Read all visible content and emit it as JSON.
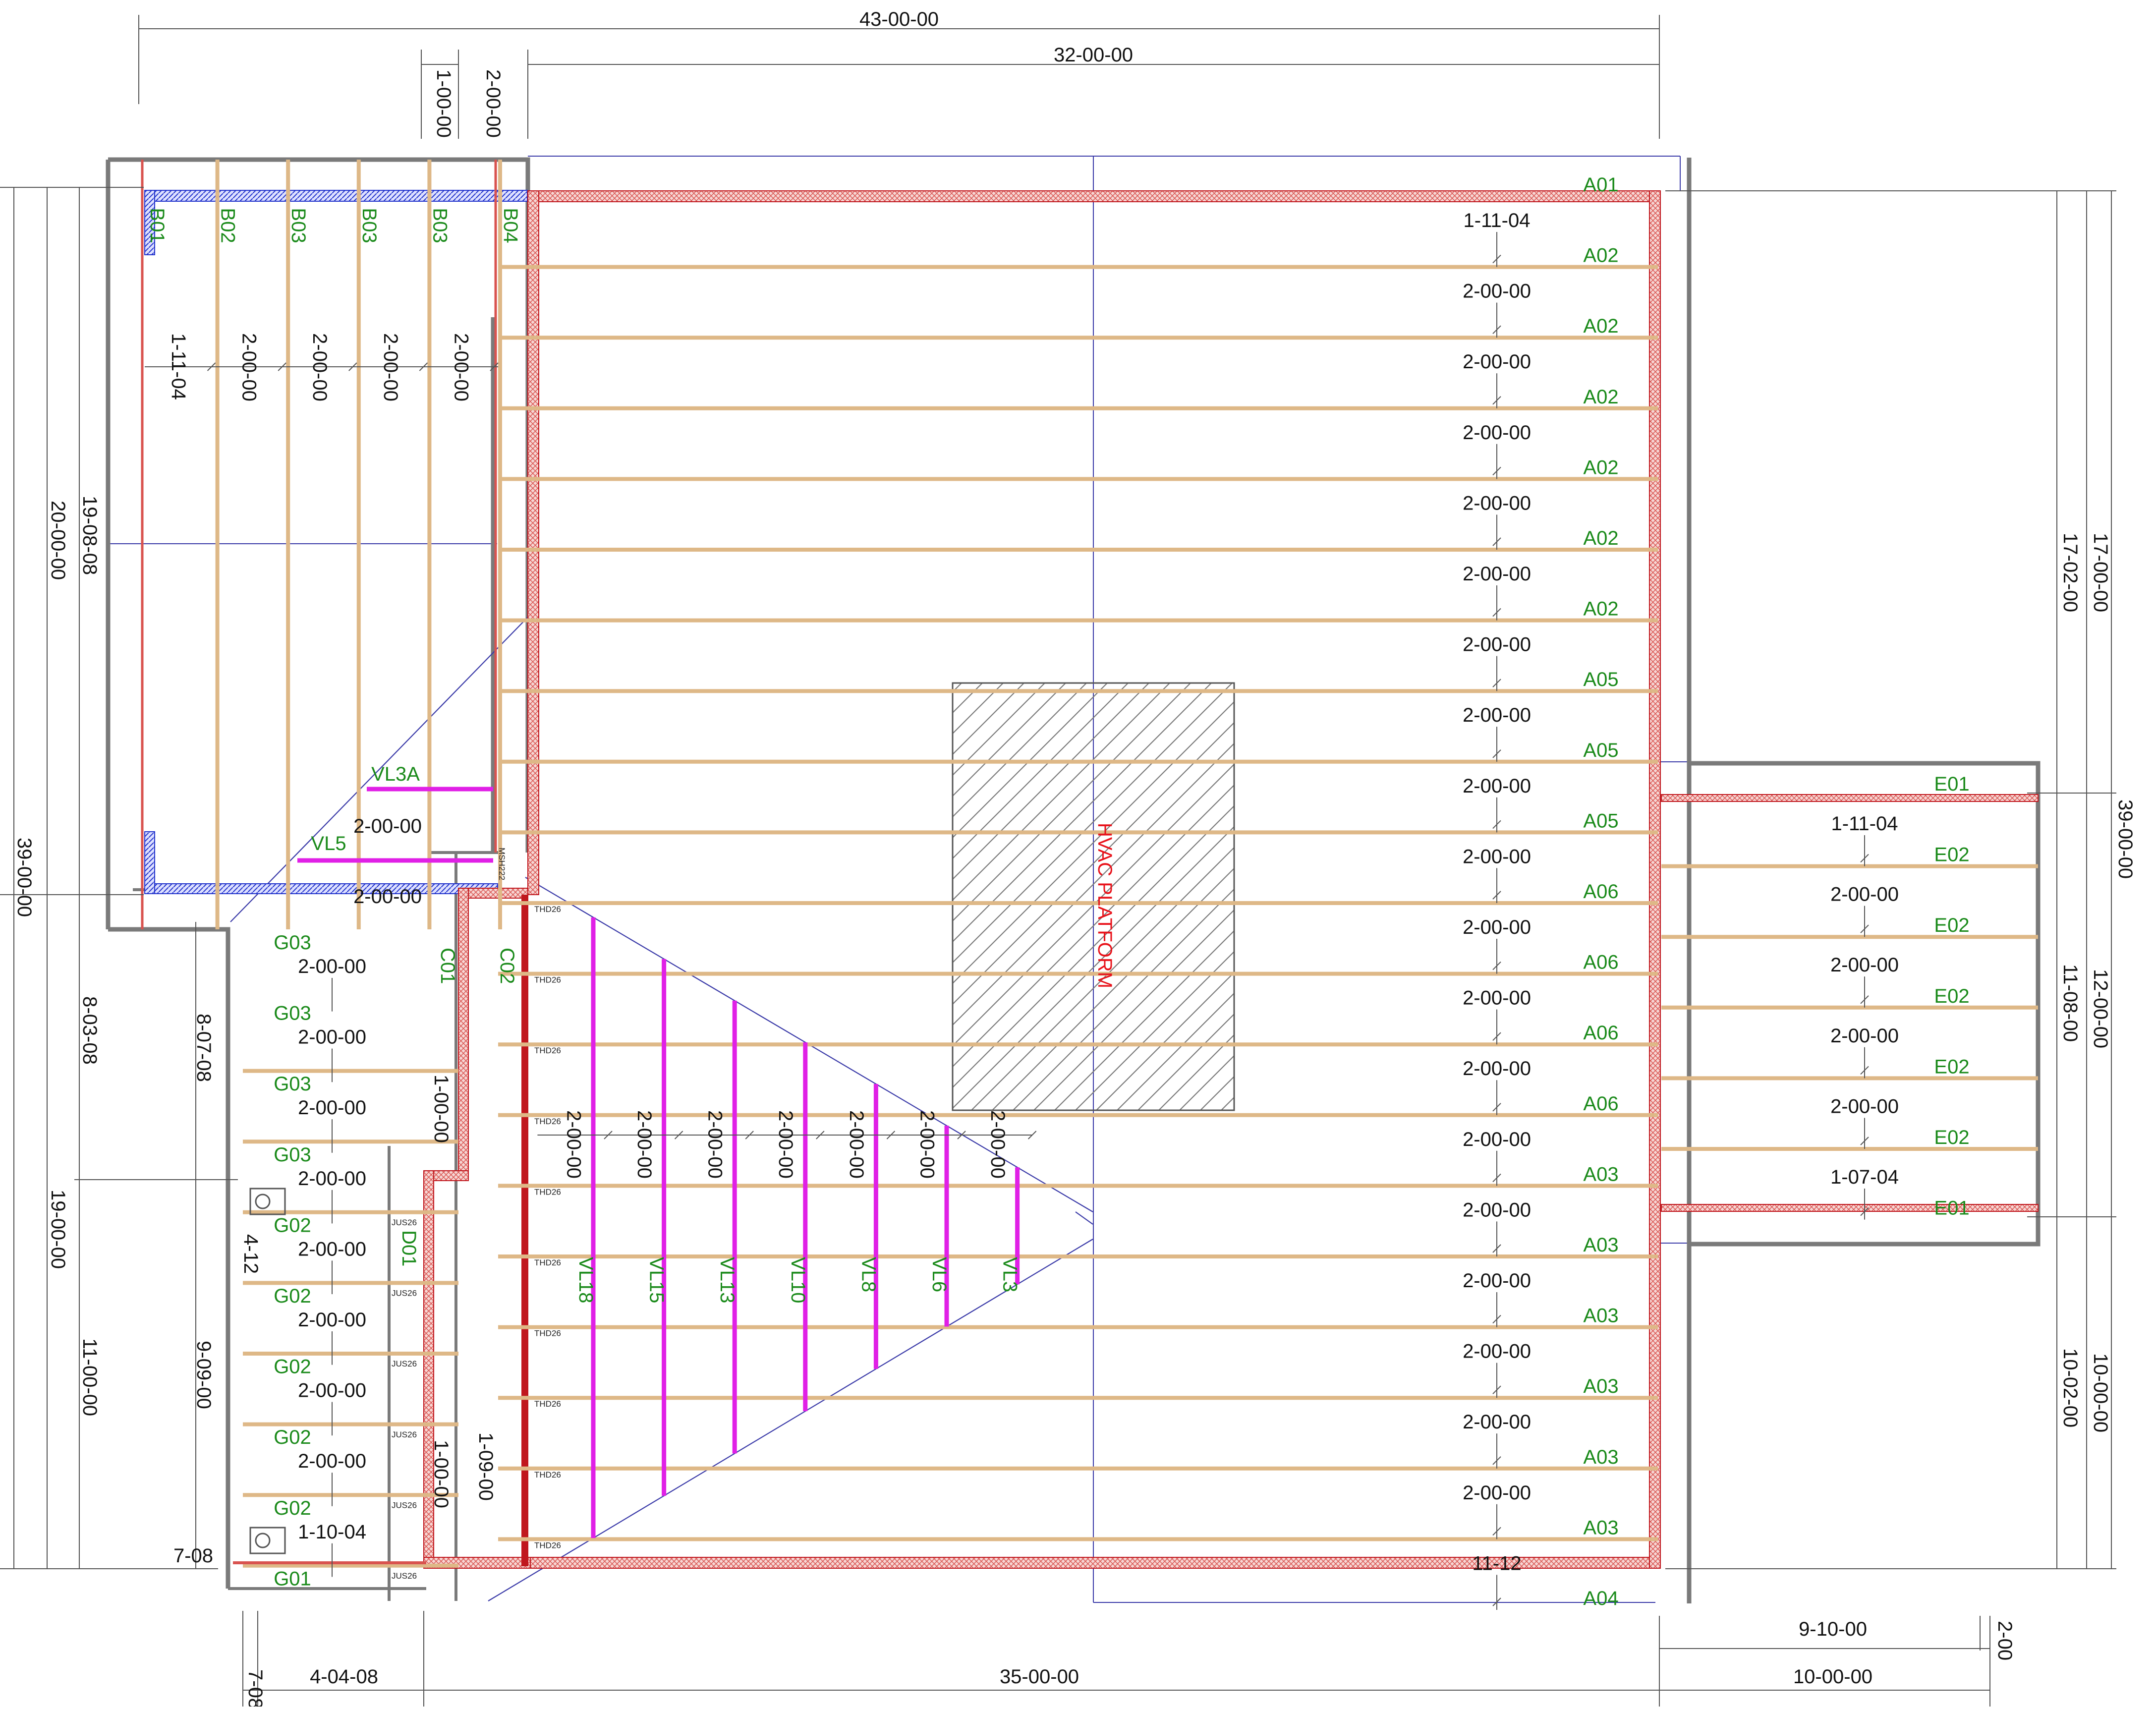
{
  "colors": {
    "joist": "#deb887",
    "rim": "#d9534f",
    "rim_hatch": "#e0706a",
    "beam_red": "#c0171e",
    "blue_hatch": "#2233cc",
    "vl_magenta": "#e020e6",
    "label_green": "#1a8a1a",
    "ref_line": "#3a3aa8",
    "wall_gray": "#7a7a7a",
    "dim_line": "#555555",
    "platform_hatch": "#7a7a7a",
    "hvac_red": "#e8121a"
  },
  "top_dims": {
    "overall": "43-00-00",
    "span": "32-00-00",
    "v1": "1-00-00",
    "v2": "2-00-00"
  },
  "bottom_dims": {
    "a": "7-08",
    "b": "4-04-08",
    "c": "35-00-00",
    "d": "9-10-00",
    "e": "10-00-00",
    "f": "2-00"
  },
  "left_dims": {
    "a": "20-00-00",
    "b": "19-08-08",
    "c": "39-00-00",
    "d": "8-03-08",
    "e": "19-00-00",
    "f": "11-00-00",
    "g": "8-07-08",
    "h": "9-09-00",
    "i": "4-12",
    "j": "7-08"
  },
  "right_dims": {
    "a": "17-00-00",
    "b": "17-02-00",
    "c": "39-00-00",
    "d": "12-00-00",
    "e": "11-08-00",
    "f": "10-00-00",
    "g": "10-02-00"
  },
  "a_joists": {
    "labels": [
      "A01",
      "A02",
      "A02",
      "A02",
      "A02",
      "A02",
      "A02",
      "A05",
      "A05",
      "A05",
      "A06",
      "A06",
      "A06",
      "A06",
      "A03",
      "A03",
      "A03",
      "A03",
      "A03",
      "A03",
      "A04"
    ],
    "spacings": [
      "1-11-04",
      "2-00-00",
      "2-00-00",
      "2-00-00",
      "2-00-00",
      "2-00-00",
      "2-00-00",
      "2-00-00",
      "2-00-00",
      "2-00-00",
      "2-00-00",
      "2-00-00",
      "2-00-00",
      "2-00-00",
      "2-00-00",
      "2-00-00",
      "2-00-00",
      "2-00-00",
      "2-00-00",
      "11-12"
    ]
  },
  "b_joists": {
    "labels": [
      "B01",
      "B02",
      "B03",
      "B03",
      "B03",
      "B04"
    ],
    "spacings": [
      "1-11-04",
      "2-00-00",
      "2-00-00",
      "2-00-00",
      "2-00-00"
    ]
  },
  "e_joists": {
    "labels": [
      "E01",
      "E02",
      "E02",
      "E02",
      "E02",
      "E02",
      "E01"
    ],
    "spacings": [
      "1-11-04",
      "2-00-00",
      "2-00-00",
      "2-00-00",
      "2-00-00",
      "1-07-04"
    ]
  },
  "g_joists": {
    "labels": [
      "G03",
      "G03",
      "G03",
      "G03",
      "G02",
      "G02",
      "G02",
      "G02",
      "G02",
      "G01"
    ],
    "spacings": [
      "2-00-00",
      "2-00-00",
      "2-00-00",
      "2-00-00",
      "2-00-00",
      "2-00-00",
      "2-00-00",
      "2-00-00",
      "1-10-04"
    ]
  },
  "vl": {
    "labels": [
      "VL18",
      "VL15",
      "VL13",
      "VL10",
      "VL8",
      "VL6",
      "VL3"
    ],
    "spacings": [
      "2-00-00",
      "2-00-00",
      "2-00-00",
      "2-00-00",
      "2-00-00",
      "2-00-00",
      "2-00-00"
    ],
    "vl3a": "VL3A",
    "vl5": "VL5",
    "dim_vl3a": "2-00-00",
    "dim_vl5": "2-00-00"
  },
  "misc": {
    "c01": "C01",
    "c02": "C02",
    "d01": "D01",
    "stair_dim_1": "1-00-00",
    "stair_dim_2": "1-00-00",
    "stair_dim_3": "1-09-00",
    "hvac": "HVAC PLATFORM",
    "msh": "MSH222",
    "thd": "THD26",
    "jus": "JUS26"
  }
}
